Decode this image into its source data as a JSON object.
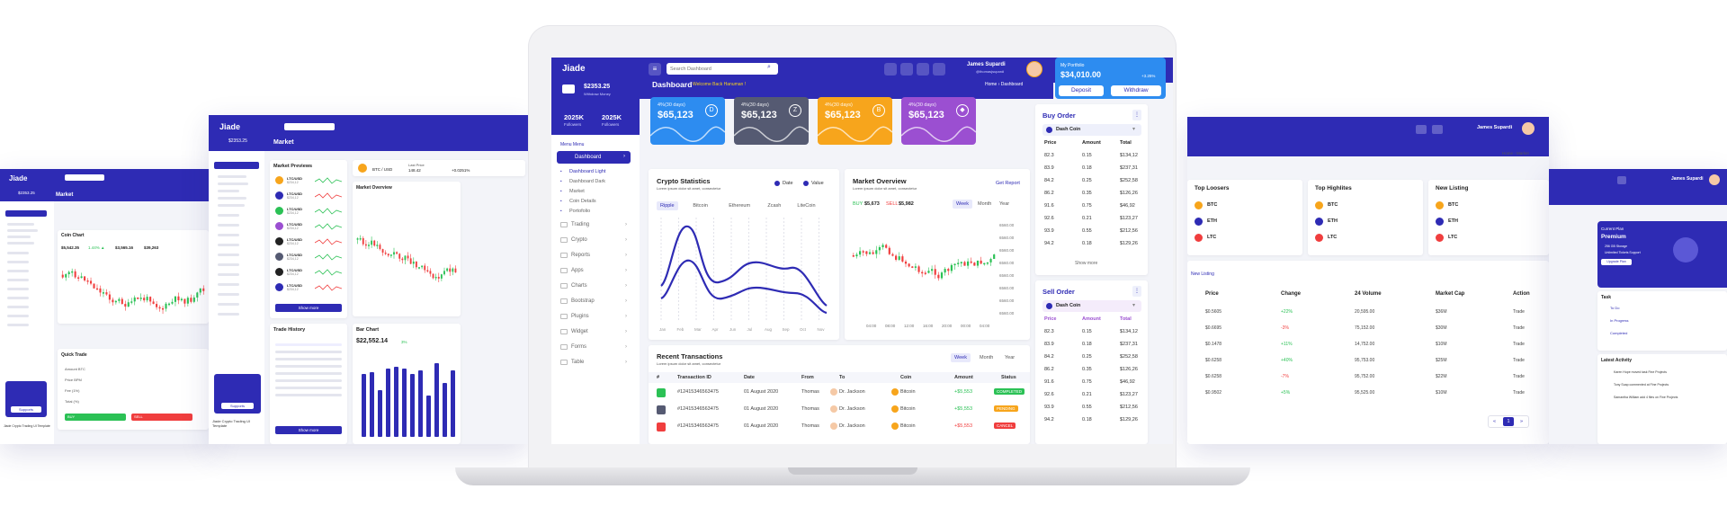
{
  "brand": "Jiade",
  "main": {
    "search_placeholder": "Search Dashboard",
    "user_name": "James Supardi",
    "user_handle": "@thomasjsupardi",
    "portfolio": {
      "label": "My Portfolio",
      "value": "$34,010.00",
      "change": "+3.25%",
      "deposit": "Deposit",
      "withdraw": "Withdraw"
    },
    "balance": {
      "value": "$2353.25",
      "caption": "Withdraw Money"
    },
    "followers": [
      {
        "value": "2025K",
        "label": "Followers"
      },
      {
        "value": "2025K",
        "label": "Followers"
      }
    ],
    "page_title": "Dashboard",
    "page_subtitle": "Welcome Back Hanuman !",
    "breadcrumb": {
      "home": "Home",
      "current": "Dashboard"
    },
    "menu_title": "Menu Menu",
    "menu": {
      "dashboard": "Dashboard",
      "sub": [
        "Dashboard Light",
        "Dashboard Dark",
        "Market",
        "Coin Details",
        "Portofolio"
      ],
      "items": [
        "Trading",
        "Crypto",
        "Reports",
        "Apps",
        "Charts",
        "Bootstrap",
        "Plugins",
        "Widget",
        "Forms",
        "Table"
      ]
    },
    "stats": [
      {
        "label": "4%(30 days)",
        "value": "$65,123",
        "color": "#2d8cf0",
        "icon": "dash-icon"
      },
      {
        "label": "4%(30 days)",
        "value": "$65,123",
        "color": "#555a72",
        "icon": "zcash-icon"
      },
      {
        "label": "4%(30 days)",
        "value": "$65,123",
        "color": "#f7a51c",
        "icon": "bitcoin-icon"
      },
      {
        "label": "4%(30 days)",
        "value": "$65,123",
        "color": "#9b4fd1",
        "icon": "ethereum-icon"
      }
    ],
    "crypto_stats": {
      "title": "Crypto Statistics",
      "subtitle": "Lorem ipsum dolor sit amet, consectetur",
      "legend": [
        "Date",
        "Value"
      ],
      "tabs": [
        "Ripple",
        "Bitcoin",
        "Ethereum",
        "Zcash",
        "LiteCoin"
      ],
      "months": [
        "Jan",
        "Feb",
        "Mar",
        "Apr",
        "Jun",
        "Jul",
        "Aug",
        "Sep",
        "Oct",
        "Nov"
      ]
    },
    "market_overview": {
      "title": "Market Overview",
      "subtitle": "Lorem ipsum dolor sit amet, consectetur",
      "report": "Get Report",
      "buy_label": "BUY",
      "buy_value": "$5,673",
      "sell_label": "SELL",
      "sell_value": "$5,982",
      "tabs": [
        "Week",
        "Month",
        "Year"
      ],
      "y_ticks": [
        "6560.00",
        "6560.00",
        "6560.00",
        "6560.00",
        "6560.00",
        "6560.00",
        "6560.00",
        "6560.00"
      ],
      "x_ticks": [
        "04:00",
        "08:00",
        "12:00",
        "16:00",
        "20:00",
        "00:00",
        "04:00"
      ]
    },
    "recent": {
      "title": "Recent Transactions",
      "subtitle": "Lorem ipsum dolor sit amet, consectetur",
      "tabs": [
        "Week",
        "Month",
        "Year"
      ],
      "headers": [
        "#",
        "Transaction ID",
        "Date",
        "From",
        "To",
        "Coin",
        "Amount",
        "Status"
      ],
      "rows": [
        {
          "id": "#12415346563475",
          "date": "01 August 2020",
          "from": "Thomas",
          "to": "Dr. Jackson",
          "coin": "Bitcoin",
          "amount": "+$5,553",
          "status": "COMPLETED",
          "status_color": "#2bc155"
        },
        {
          "id": "#12415346563475",
          "date": "01 August 2020",
          "from": "Thomas",
          "to": "Dr. Jackson",
          "coin": "Bitcoin",
          "amount": "+$5,553",
          "status": "PENDING",
          "status_color": "#f7a51c"
        },
        {
          "id": "#12415346563475",
          "date": "01 August 2020",
          "from": "Thomas",
          "to": "Dr. Jackson",
          "coin": "Bitcoin",
          "amount": "+$5,553",
          "status": "CANCEL",
          "status_color": "#f03e3e"
        }
      ]
    },
    "buy_order": {
      "title": "Buy Order",
      "coin": "Dash Coin",
      "headers": [
        "Price",
        "Amount",
        "Total"
      ],
      "rows": [
        [
          "82.3",
          "0.15",
          "$134,12"
        ],
        [
          "83.9",
          "0.18",
          "$237,31"
        ],
        [
          "84.2",
          "0.25",
          "$252,58"
        ],
        [
          "86.2",
          "0.35",
          "$126,26"
        ],
        [
          "91.6",
          "0.75",
          "$46,92"
        ],
        [
          "92.6",
          "0.21",
          "$123,27"
        ],
        [
          "93.9",
          "0.55",
          "$212,56"
        ],
        [
          "94.2",
          "0.18",
          "$129,26"
        ]
      ],
      "show_more": "Show more"
    },
    "sell_order": {
      "title": "Sell Order",
      "coin": "Dash Coin",
      "headers": [
        "Price",
        "Amount",
        "Total"
      ],
      "rows": [
        [
          "82.3",
          "0.15",
          "$134,12"
        ],
        [
          "83.9",
          "0.18",
          "$237,31"
        ],
        [
          "84.2",
          "0.25",
          "$252,58"
        ],
        [
          "86.2",
          "0.35",
          "$126,26"
        ],
        [
          "91.6",
          "0.75",
          "$46,92"
        ],
        [
          "92.6",
          "0.21",
          "$123,27"
        ],
        [
          "93.9",
          "0.55",
          "$212,56"
        ],
        [
          "94.2",
          "0.18",
          "$129,26"
        ]
      ]
    }
  },
  "left_screen": {
    "page_title": "Market",
    "balance": "$2353.25",
    "market_previews_title": "Market Previews",
    "coins": [
      {
        "name": "LTC/USD",
        "value": "$234,12"
      },
      {
        "name": "LTC/USD",
        "value": "$234,12"
      },
      {
        "name": "LTC/USD",
        "value": "$234,12"
      },
      {
        "name": "LTC/USD",
        "value": "$234,12"
      },
      {
        "name": "LTC/USD",
        "value": "$234,12"
      },
      {
        "name": "LTC/USD",
        "value": "$234,12"
      },
      {
        "name": "LTC/USD",
        "value": "$234,12"
      },
      {
        "name": "LTC/USD",
        "value": "$234,12"
      }
    ],
    "show_more": "Show more",
    "market_overview": "Market Overview",
    "trade_history": "Trade History",
    "bar_chart": "Bar Chart",
    "bar_value": "$22,552.14",
    "bar_change": "3%",
    "btc_usd": "BTC / USD",
    "last_price": "Last Price",
    "last_price_value": "148.42",
    "trading_rate_value": "+0.0251%",
    "support_button": "Supports",
    "footer_title": "Jiade Crypto Trading UI Template"
  },
  "far_left_screen": {
    "page_title": "Market",
    "balance": "$2353.25",
    "coin_chart_title": "Coin Chart",
    "stats": [
      "$5,542.35",
      "1.44% ▲",
      "$3,565.16",
      "$39,263"
    ],
    "quick_trade": "Quick Trade",
    "quick_fields": [
      "Amount BTC",
      "Price BPM",
      "Fee (1%)",
      "Total (%)"
    ],
    "support_button": "Supports",
    "footer_title": "Jiade Crypto Trading UI Template",
    "buy_button": "BUY",
    "sell_button": "SELL"
  },
  "right_screen": {
    "user_name": "James Supardi",
    "breadcrumb": {
      "home": "Home",
      "current": "Market"
    },
    "top_loosers": "Top Loosers",
    "top_highlites": "Top Highlites",
    "new_listing": "New Listing",
    "coins": [
      "BTC",
      "ETH",
      "LTC"
    ],
    "table_tab": "New Listing",
    "table_headers": [
      "Price",
      "Change",
      "24 Volume",
      "Market Cap",
      "Action"
    ],
    "table_rows": [
      [
        "$0.5605",
        "+22%",
        "20,595.00",
        "$36M",
        "Trade"
      ],
      [
        "$0.6695",
        "-3%",
        "75,152.00",
        "$30M",
        "Trade"
      ],
      [
        "$0.1478",
        "+11%",
        "14,752.00",
        "$10M",
        "Trade"
      ],
      [
        "$0.6258",
        "+40%",
        "95,753.00",
        "$25M",
        "Trade"
      ],
      [
        "$0.6258",
        "-7%",
        "95,752.00",
        "$22M",
        "Trade"
      ],
      [
        "$0.9502",
        "+5%",
        "95,525.00",
        "$10M",
        "Trade"
      ]
    ],
    "pagination": [
      "«",
      "1",
      "»"
    ]
  },
  "far_right_screen": {
    "user_name": "James Supardi",
    "current_plan": "Current Plan",
    "plan_name": "Premium",
    "plan_features": [
      "256 GB Storage",
      "Unlimited Tickets Support"
    ],
    "upgrade": "Upgrade Plan",
    "task_title": "Task",
    "tasks": [
      "To Do",
      "In Progress",
      "Completed"
    ],
    "latest_activity": "Latest Activity",
    "activities": [
      "Karen Hope moved task Fine Projects",
      "Tony Soap commented at Fine Projects",
      "Samantha William add 4 files on Fine Projects"
    ]
  },
  "colors": {
    "primary": "#2e2bb4",
    "green": "#2bc155",
    "red": "#f03e3e",
    "orange": "#f7a51c",
    "purple": "#9b4fd1"
  }
}
